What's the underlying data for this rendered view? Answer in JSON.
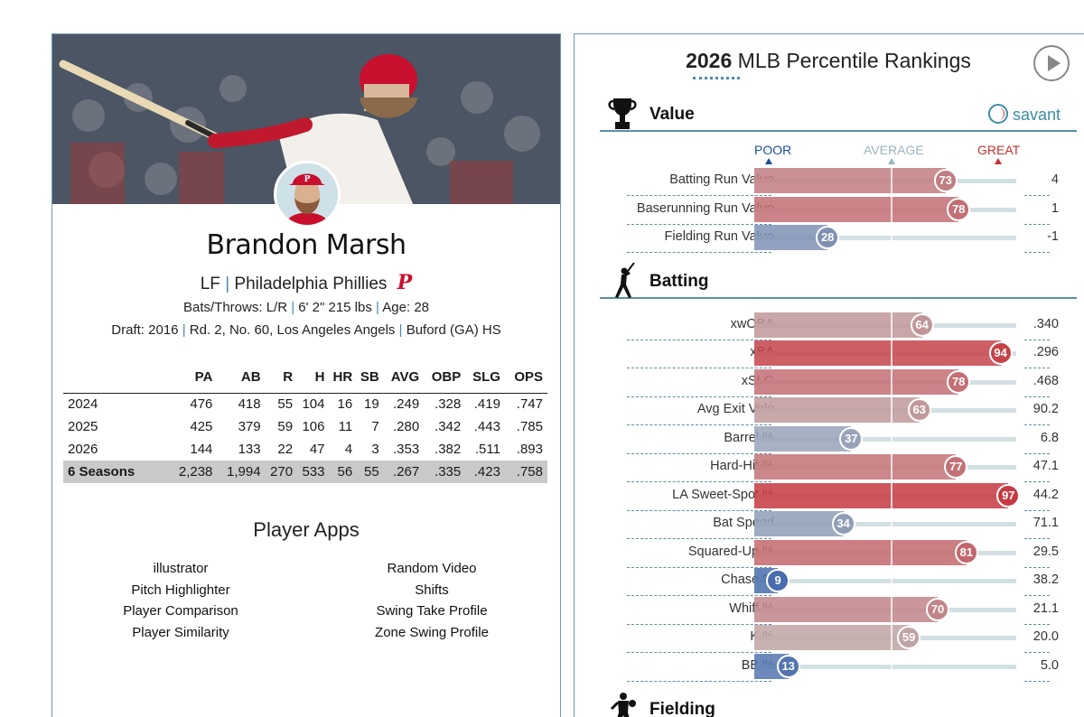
{
  "player": {
    "name": "Brandon Marsh",
    "position": "LF",
    "team": "Philadelphia Phillies",
    "team_logo": "P",
    "bats_throws_label": "Bats/Throws:",
    "bats_throws": "L/R",
    "height_weight": "6' 2\" 215 lbs",
    "age_label": "Age:",
    "age": "28",
    "draft_label": "Draft:",
    "draft_year": "2016",
    "draft_pick": "Rd. 2, No. 60,",
    "draft_team": "Los Angeles Angels",
    "school": "Buford (GA) HS"
  },
  "stats_table": {
    "headers": [
      "",
      "PA",
      "AB",
      "R",
      "H",
      "HR",
      "SB",
      "AVG",
      "OBP",
      "SLG",
      "OPS"
    ],
    "rows": [
      [
        "2024",
        "476",
        "418",
        "55",
        "104",
        "16",
        "19",
        ".249",
        ".328",
        ".419",
        ".747"
      ],
      [
        "2025",
        "425",
        "379",
        "59",
        "106",
        "11",
        "7",
        ".280",
        ".342",
        ".443",
        ".785"
      ],
      [
        "2026",
        "144",
        "133",
        "22",
        "47",
        "4",
        "3",
        ".353",
        ".382",
        ".511",
        ".893"
      ]
    ],
    "total": [
      "6 Seasons",
      "2,238",
      "1,994",
      "270",
      "533",
      "56",
      "55",
      ".267",
      ".335",
      ".423",
      ".758"
    ]
  },
  "apps": {
    "title": "Player Apps",
    "col1": [
      "illustrator",
      "Pitch Highlighter",
      "Player Comparison",
      "Player Similarity"
    ],
    "col2": [
      "Random Video",
      "Shifts",
      "Swing Take Profile",
      "Zone Swing Profile"
    ]
  },
  "rankings": {
    "title_year": "2026",
    "title_rest": " MLB Percentile Rankings",
    "brand": "savant",
    "scale": {
      "poor": "POOR",
      "average": "AVERAGE",
      "great": "GREAT"
    },
    "sections": [
      {
        "label": "Value",
        "icon": "trophy-icon",
        "metrics": [
          {
            "label": "Batting Run Value",
            "pct": 73,
            "value": "4"
          },
          {
            "label": "Baserunning Run Value",
            "pct": 78,
            "value": "1"
          },
          {
            "label": "Fielding Run Value",
            "pct": 28,
            "value": "-1"
          }
        ]
      },
      {
        "label": "Batting",
        "icon": "batter-icon",
        "metrics": [
          {
            "label": "xwOBA",
            "pct": 64,
            "value": ".340"
          },
          {
            "label": "xBA",
            "pct": 94,
            "value": ".296"
          },
          {
            "label": "xSLG",
            "pct": 78,
            "value": ".468"
          },
          {
            "label": "Avg Exit Velo",
            "pct": 63,
            "value": "90.2"
          },
          {
            "label": "Barrel %",
            "pct": 37,
            "value": "6.8"
          },
          {
            "label": "Hard-Hit %",
            "pct": 77,
            "value": "47.1"
          },
          {
            "label": "LA Sweet-Spot %",
            "pct": 97,
            "value": "44.2"
          },
          {
            "label": "Bat Speed",
            "pct": 34,
            "value": "71.1"
          },
          {
            "label": "Squared-Up %",
            "pct": 81,
            "value": "29.5"
          },
          {
            "label": "Chase %",
            "pct": 9,
            "value": "38.2"
          },
          {
            "label": "Whiff %",
            "pct": 70,
            "value": "21.1"
          },
          {
            "label": "K %",
            "pct": 59,
            "value": "20.0"
          },
          {
            "label": "BB %",
            "pct": 13,
            "value": "5.0"
          }
        ]
      },
      {
        "label": "Fielding",
        "icon": "fielder-icon",
        "metrics": []
      }
    ]
  },
  "colors": {
    "great": "#c7323a",
    "poor": "#2e5aa8",
    "average": "#bdbdbd",
    "accent": "#4a8db0",
    "phillies_red": "#c8102e"
  }
}
